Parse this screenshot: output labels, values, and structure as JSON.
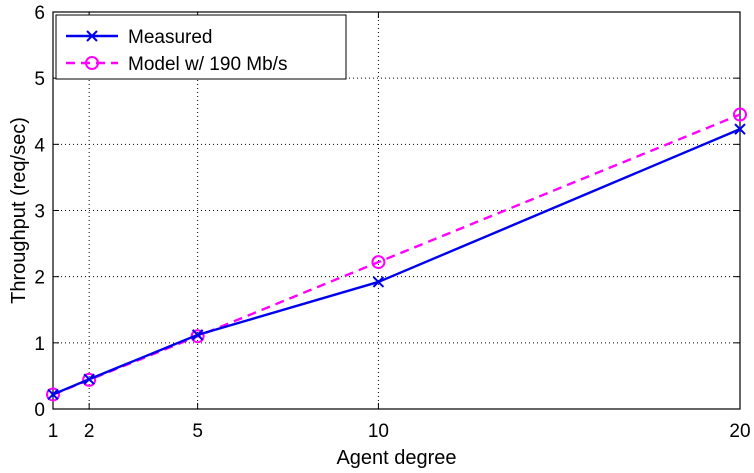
{
  "chart_data": {
    "type": "line",
    "x": [
      1,
      2,
      5,
      10,
      20
    ],
    "series": [
      {
        "name": "Measured",
        "values": [
          0.22,
          0.45,
          1.12,
          1.92,
          4.23
        ],
        "color": "#0000ee",
        "line": "solid",
        "marker": "x"
      },
      {
        "name": "Model w/ 190 Mb/s",
        "values": [
          0.22,
          0.44,
          1.1,
          2.22,
          4.45
        ],
        "color": "#ff00ff",
        "line": "dashed",
        "marker": "circle"
      }
    ],
    "xlabel": "Agent degree",
    "ylabel": "Throughput (req/sec)",
    "xlim": [
      1,
      20
    ],
    "ylim": [
      0,
      6
    ],
    "xticks": [
      1,
      2,
      5,
      10,
      20
    ],
    "yticks": [
      0,
      1,
      2,
      3,
      4,
      5,
      6
    ],
    "xtick_labels": [
      "1",
      "2",
      "5",
      "10",
      "20"
    ],
    "ytick_labels": [
      "0",
      "1",
      "2",
      "3",
      "4",
      "5",
      "6"
    ],
    "grid": true,
    "grid_style": "dotted",
    "legend_position": "top-left"
  }
}
